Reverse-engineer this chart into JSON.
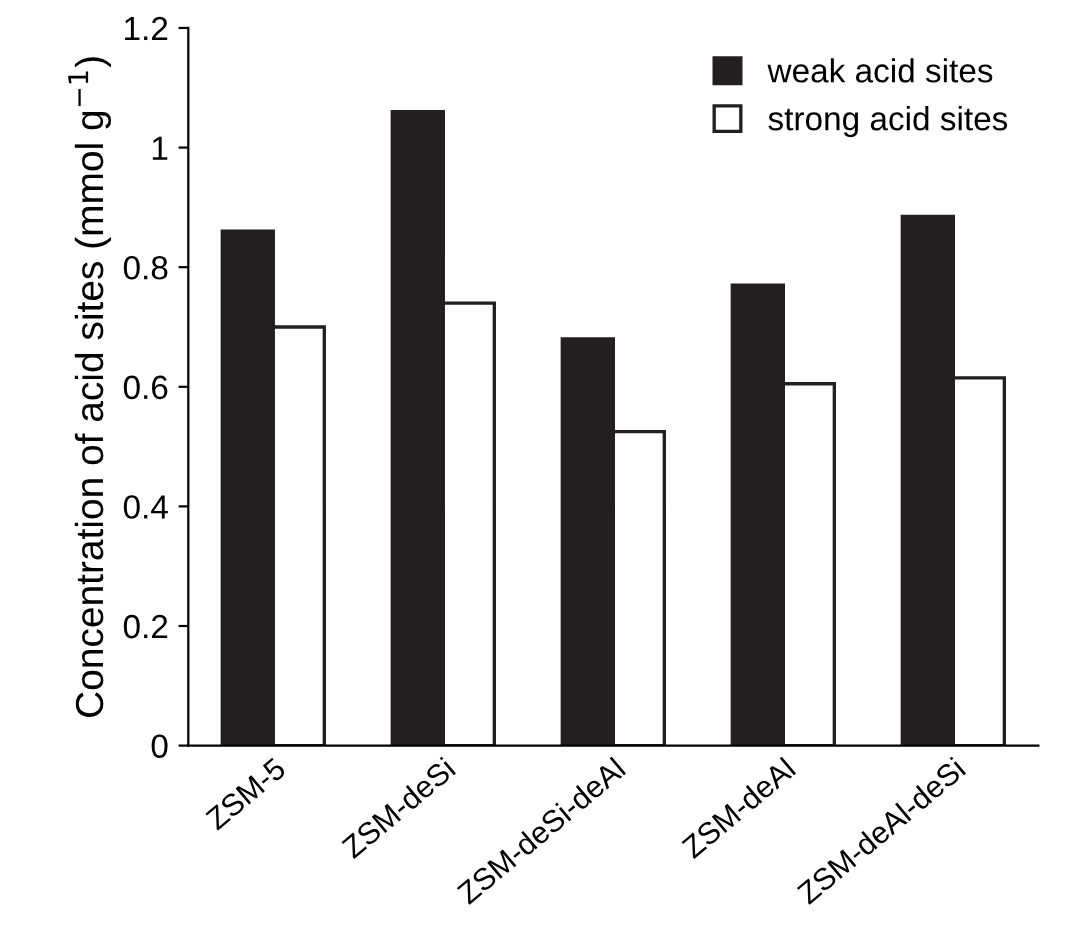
{
  "chart_data": {
    "type": "bar",
    "ylabel": "Concentration of acid sites (mmol g$^{−1}$)",
    "categories": [
      "ZSM-5",
      "ZSM-deSi",
      "ZSM-deSi-deAl",
      "ZSM-deAl",
      "ZSM-deAl-deSi"
    ],
    "series": [
      {
        "name": "weak acid sites",
        "color": "#231f20",
        "values": [
          0.86,
          1.06,
          0.68,
          0.77,
          0.885
        ]
      },
      {
        "name": "strong acid sites",
        "color": "#ffffff",
        "values": [
          0.7,
          0.74,
          0.525,
          0.605,
          0.615
        ]
      }
    ],
    "ylim": [
      0,
      1.2
    ],
    "yticks": [
      0,
      {
        "value": 0.2,
        "label": "0.2"
      },
      {
        "value": 0.4,
        "label": "0.4"
      },
      {
        "value": 0.6,
        "label": "0.6"
      },
      {
        "value": 0.8,
        "label": "0.8"
      },
      1,
      {
        "value": 1.2,
        "label": "1.2"
      }
    ],
    "legend": "top right"
  }
}
